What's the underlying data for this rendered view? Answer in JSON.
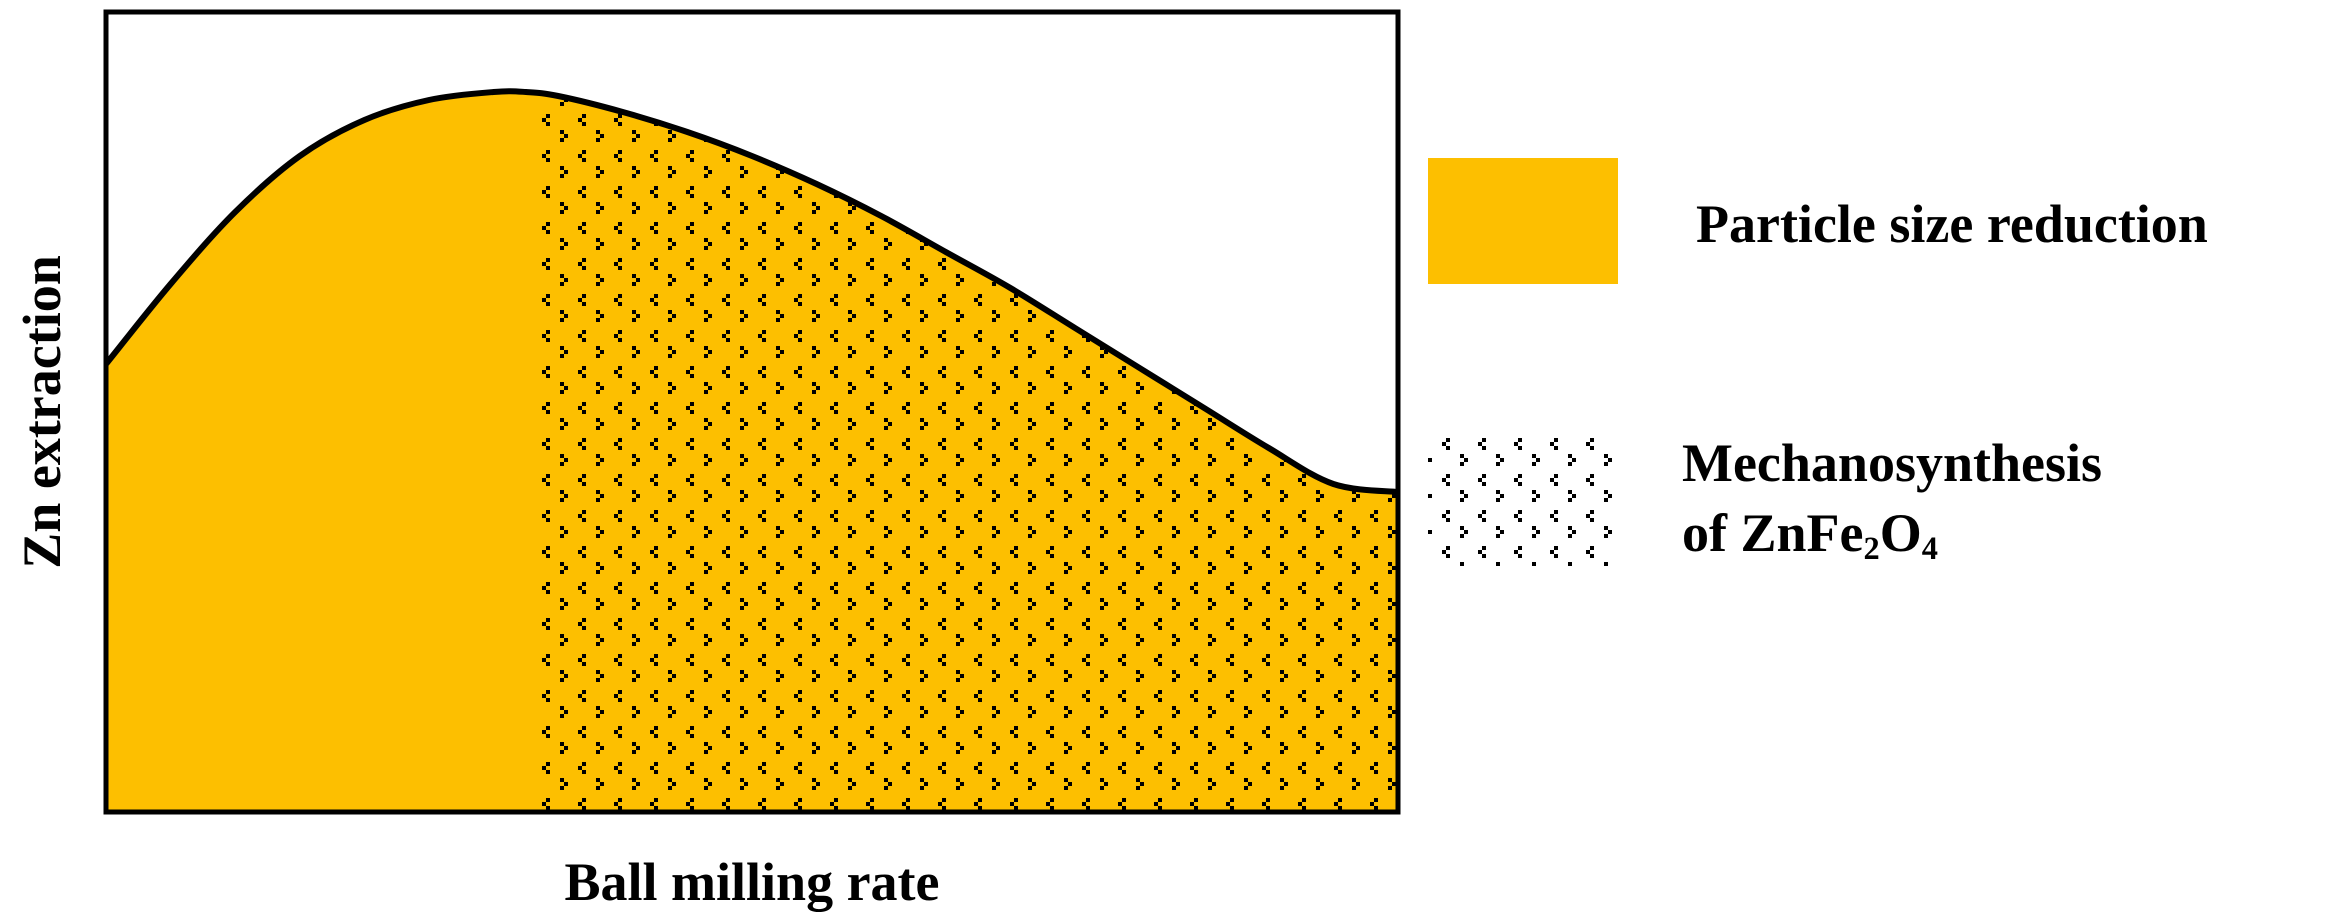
{
  "chart_data": {
    "type": "area",
    "xlabel": "Ball milling rate",
    "ylabel": "Zn extraction",
    "xlim": [
      0,
      1
    ],
    "ylim": [
      0,
      1
    ],
    "grid": false,
    "legend_placement": "right",
    "curve": {
      "x": [
        0,
        0.05,
        0.1,
        0.15,
        0.2,
        0.25,
        0.3,
        0.325,
        0.35,
        0.4,
        0.45,
        0.5,
        0.55,
        0.6,
        0.65,
        0.7,
        0.75,
        0.8,
        0.85,
        0.9,
        0.95,
        1.0
      ],
      "y": [
        0.56,
        0.66,
        0.75,
        0.82,
        0.865,
        0.89,
        0.9,
        0.9,
        0.895,
        0.875,
        0.85,
        0.82,
        0.785,
        0.745,
        0.7,
        0.655,
        0.605,
        0.555,
        0.505,
        0.455,
        0.41,
        0.4
      ]
    },
    "series": [
      {
        "name": "Particle size reduction",
        "region": [
          0,
          1
        ],
        "color": "#FDBF00",
        "pattern": "solid"
      },
      {
        "name": "Mechanosynthesis of ZnFe2O4",
        "region": [
          0.33,
          1
        ],
        "color": "#000000",
        "pattern": "dotted"
      }
    ]
  },
  "legend": {
    "item1_label": "Particle size reduction",
    "item2_line1": "Mechanosynthesis",
    "item2_line2_prefix": "of ZnFe",
    "item2_sub1": "2",
    "item2_mid": "O",
    "item2_sub2": "4"
  },
  "colors": {
    "fill": "#FDBF00",
    "axis": "#000000",
    "pattern": "#000000"
  }
}
